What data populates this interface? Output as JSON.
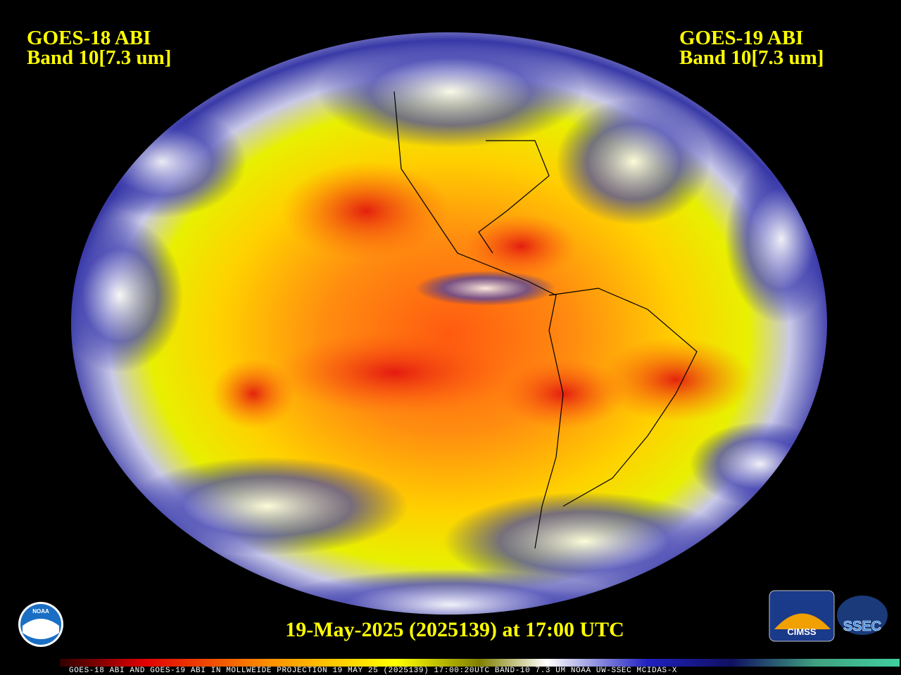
{
  "left_label": {
    "line1": "GOES-18 ABI",
    "line2": "Band 10[7.3 um]"
  },
  "right_label": {
    "line1": "GOES-19 ABI",
    "line2": "Band 10[7.3 um]"
  },
  "timestamp": "19-May-2025 (2025139) at 17:00 UTC",
  "footer": "GOES-18 ABI AND GOES-19 ABI IN MOLLWEIDE PROJECTION 19 MAY 25 (2025139) 17:00:20UTC BAND-10 7.3 UM NOAA UW-SSEC MCIDAS-X",
  "logos": {
    "noaa": "NOAA",
    "cimss": "CIMSS",
    "ssec": "SSEC"
  }
}
